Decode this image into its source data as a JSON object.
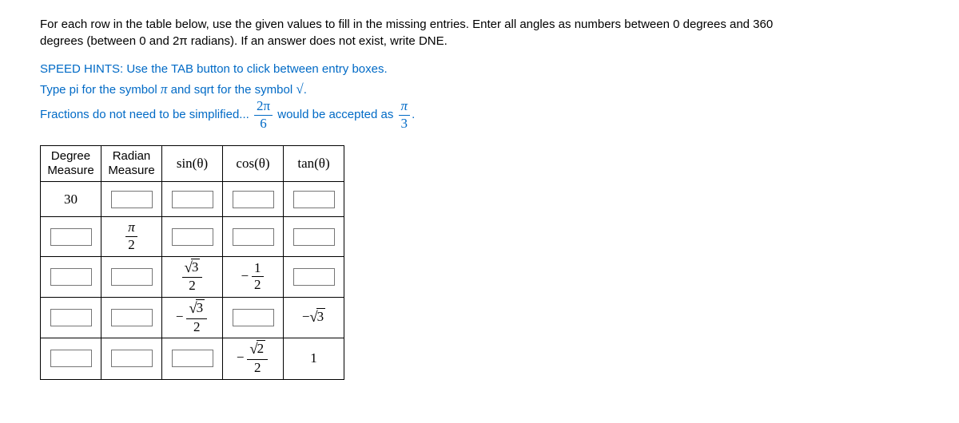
{
  "instructions": "For each row in the table below, use the given values to fill in the missing entries. Enter all angles as numbers between 0 degrees and 360 degrees (between 0 and 2π radians). If an answer does not exist, write DNE.",
  "hints": {
    "line1_a": "SPEED HINTS: Use the TAB button to click between entry boxes.",
    "line2_a": "Type pi for the symbol ",
    "line2_b": " and sqrt for the symbol ",
    "line2_c": ".",
    "pi_sym": "π",
    "sqrt_sym": "√",
    "line3_a": "Fractions do not need to be simplified...",
    "line3_b": " would be accepted as ",
    "line3_c": ".",
    "frac1_num": "2π",
    "frac1_den": "6",
    "frac2_num": "π",
    "frac2_den": "3"
  },
  "headers": {
    "deg_a": "Degree",
    "deg_b": "Measure",
    "rad_a": "Radian",
    "rad_b": "Measure",
    "sin": "sin(θ)",
    "cos": "cos(θ)",
    "tan": "tan(θ)"
  },
  "cells": {
    "r1_deg": "30",
    "r2_rad_num": "π",
    "r2_rad_den": "2",
    "r3_sin_num": "3",
    "r3_sin_den": "2",
    "r3_cos_num": "1",
    "r3_cos_den": "2",
    "r4_sin_num": "3",
    "r4_sin_den": "2",
    "r4_tan": "3",
    "r5_cos_num": "2",
    "r5_cos_den": "2",
    "r5_tan": "1"
  }
}
